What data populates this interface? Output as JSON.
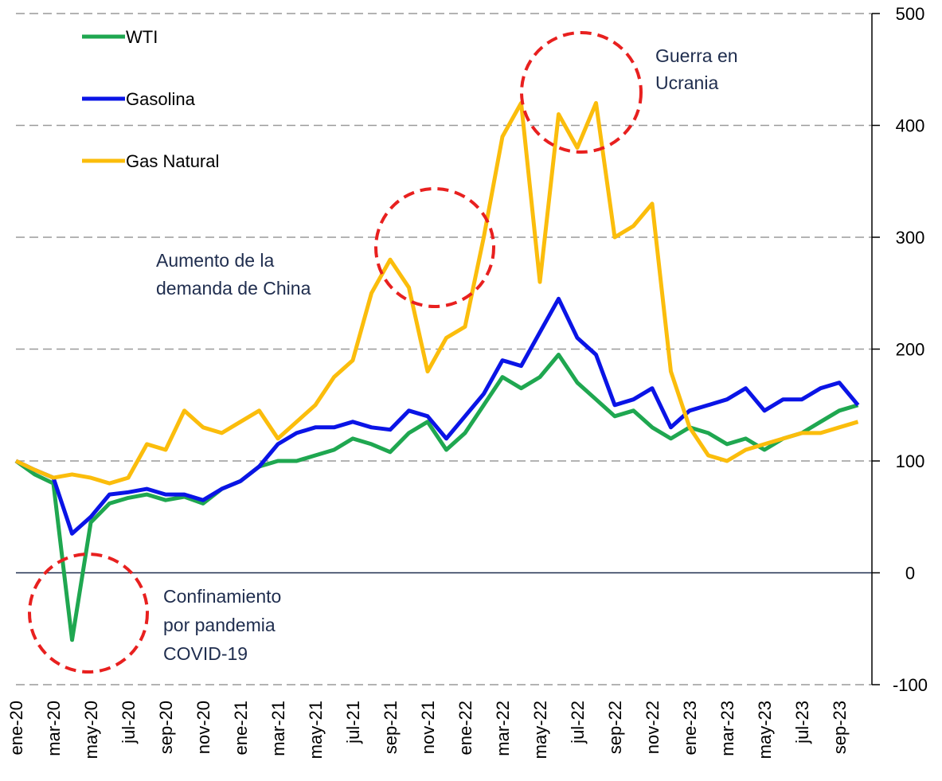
{
  "chart_data": {
    "type": "line",
    "x": [
      "ene-20",
      "feb-20",
      "mar-20",
      "abr-20",
      "may-20",
      "jun-20",
      "jul-20",
      "ago-20",
      "sep-20",
      "oct-20",
      "nov-20",
      "dic-20",
      "ene-21",
      "feb-21",
      "mar-21",
      "abr-21",
      "may-21",
      "jun-21",
      "jul-21",
      "ago-21",
      "sep-21",
      "oct-21",
      "nov-21",
      "dic-21",
      "ene-22",
      "feb-22",
      "mar-22",
      "abr-22",
      "may-22",
      "jun-22",
      "jul-22",
      "ago-22",
      "sep-22",
      "oct-22",
      "nov-22",
      "dic-22",
      "ene-23",
      "feb-23",
      "mar-23",
      "abr-23",
      "may-23",
      "jun-23",
      "jul-23",
      "ago-23",
      "sep-23",
      "oct-23"
    ],
    "xticks": [
      "ene-20",
      "mar-20",
      "may-20",
      "jul-20",
      "sep-20",
      "nov-20",
      "ene-21",
      "mar-21",
      "may-21",
      "jul-21",
      "sep-21",
      "nov-21",
      "ene-22",
      "mar-22",
      "may-22",
      "jul-22",
      "sep-22",
      "nov-22",
      "ene-23",
      "mar-23",
      "may-23",
      "jul-23",
      "sep-23"
    ],
    "series": [
      {
        "name": "WTI",
        "color": "#1fa750",
        "values": [
          100,
          88,
          80,
          -60,
          45,
          62,
          67,
          70,
          65,
          68,
          62,
          75,
          82,
          95,
          100,
          100,
          105,
          110,
          120,
          115,
          108,
          125,
          135,
          110,
          125,
          150,
          175,
          165,
          175,
          195,
          170,
          155,
          140,
          145,
          130,
          120,
          130,
          125,
          115,
          120,
          110,
          120,
          125,
          135,
          145,
          150
        ]
      },
      {
        "name": "Gasolina",
        "color": "#0a14e6",
        "values": [
          100,
          92,
          85,
          35,
          50,
          70,
          72,
          75,
          70,
          70,
          65,
          75,
          82,
          95,
          115,
          125,
          130,
          130,
          135,
          130,
          128,
          145,
          140,
          120,
          140,
          160,
          190,
          185,
          215,
          245,
          210,
          195,
          150,
          155,
          165,
          130,
          145,
          150,
          155,
          165,
          145,
          155,
          155,
          165,
          170,
          150
        ]
      },
      {
        "name": "Gas Natural",
        "color": "#fbbd0c",
        "values": [
          100,
          92,
          85,
          88,
          85,
          80,
          85,
          115,
          110,
          145,
          130,
          125,
          135,
          145,
          120,
          135,
          150,
          175,
          190,
          250,
          280,
          255,
          180,
          210,
          220,
          300,
          390,
          420,
          260,
          410,
          380,
          420,
          300,
          310,
          330,
          180,
          130,
          105,
          100,
          110,
          115,
          120,
          125,
          125,
          130,
          135
        ]
      }
    ],
    "ylim": [
      -100,
      500
    ],
    "yticks": [
      -100,
      0,
      100,
      200,
      300,
      400,
      500
    ],
    "grid": true,
    "legend": "upper left",
    "annotations": [
      "Guerra en",
      "Ucrania",
      "Aumento de la",
      "demanda de China",
      "Confinamiento",
      "por pandemia",
      "COVID-19"
    ]
  }
}
